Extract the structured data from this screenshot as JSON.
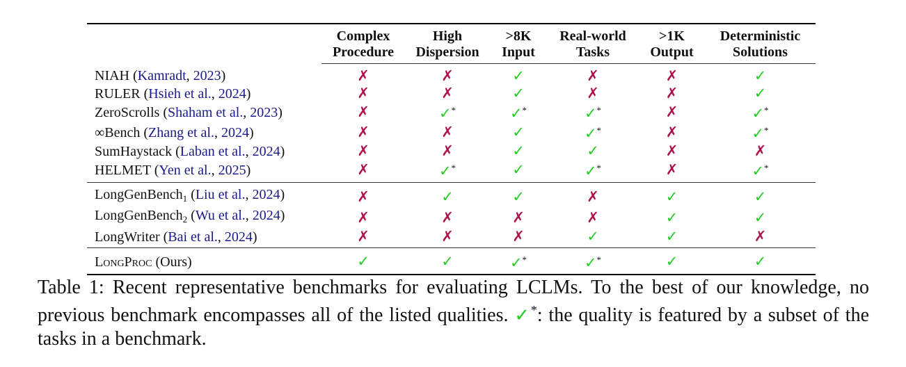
{
  "table": {
    "columns": [
      {
        "line1": "Complex",
        "line2": "Procedure"
      },
      {
        "line1": "High",
        "line2": "Dispersion"
      },
      {
        "line1": ">8K",
        "line2": "Input"
      },
      {
        "line1": "Real-world",
        "line2": "Tasks"
      },
      {
        "line1": ">1K",
        "line2": "Output"
      },
      {
        "line1": "Deterministic",
        "line2": "Solutions"
      }
    ],
    "groups": [
      [
        {
          "name": "NIAH",
          "sub": "",
          "authors": "Kamradt",
          "year": "2023",
          "marks": [
            "x",
            "x",
            "c",
            "x",
            "x",
            "c"
          ]
        },
        {
          "name": "RULER",
          "sub": "",
          "authors": "Hsieh et al.",
          "year": "2024",
          "marks": [
            "x",
            "x",
            "c",
            "x",
            "x",
            "c"
          ]
        },
        {
          "name": "ZeroScrolls",
          "sub": "",
          "authors": "Shaham et al.",
          "year": "2023",
          "marks": [
            "x",
            "c*",
            "c*",
            "c*",
            "x",
            "c*"
          ]
        },
        {
          "name": "∞Bench",
          "sub": "",
          "authors": "Zhang et al.",
          "year": "2024",
          "marks": [
            "x",
            "x",
            "c",
            "c*",
            "x",
            "c*"
          ]
        },
        {
          "name": "SumHaystack",
          "sub": "",
          "authors": "Laban et al.",
          "year": "2024",
          "marks": [
            "x",
            "x",
            "c",
            "c",
            "x",
            "x"
          ]
        },
        {
          "name": "HELMET",
          "sub": "",
          "authors": "Yen et al.",
          "year": "2025",
          "marks": [
            "x",
            "c*",
            "c",
            "c*",
            "x",
            "c*"
          ]
        }
      ],
      [
        {
          "name": "LongGenBench",
          "sub": "1",
          "authors": "Liu et al.",
          "year": "2024",
          "marks": [
            "x",
            "c",
            "c",
            "x",
            "c",
            "c"
          ]
        },
        {
          "name": "LongGenBench",
          "sub": "2",
          "authors": "Wu et al.",
          "year": "2024",
          "marks": [
            "x",
            "x",
            "x",
            "x",
            "c",
            "c"
          ]
        },
        {
          "name": "LongWriter",
          "sub": "",
          "authors": "Bai et al.",
          "year": "2024",
          "marks": [
            "x",
            "x",
            "x",
            "c",
            "c",
            "x"
          ]
        }
      ],
      [
        {
          "name": "LongProc",
          "sub": "",
          "suffix": "(Ours)",
          "smallcaps": true,
          "marks": [
            "c",
            "c",
            "c*",
            "c*",
            "c",
            "c"
          ]
        }
      ]
    ]
  },
  "symbols": {
    "check": "✓",
    "cross": "✗",
    "star": "*"
  },
  "caption": {
    "part1": "Table 1: Recent representative benchmarks for evaluating LCLMs. To the best of our knowledge, no previous benchmark encompasses all of the listed qualities. ",
    "star": "*",
    "part2": ": the quality is featured by a subset of the tasks in a benchmark."
  },
  "colors": {
    "check": "#22cc22",
    "cross": "#b0104a",
    "citation": "#1a1a8c"
  }
}
